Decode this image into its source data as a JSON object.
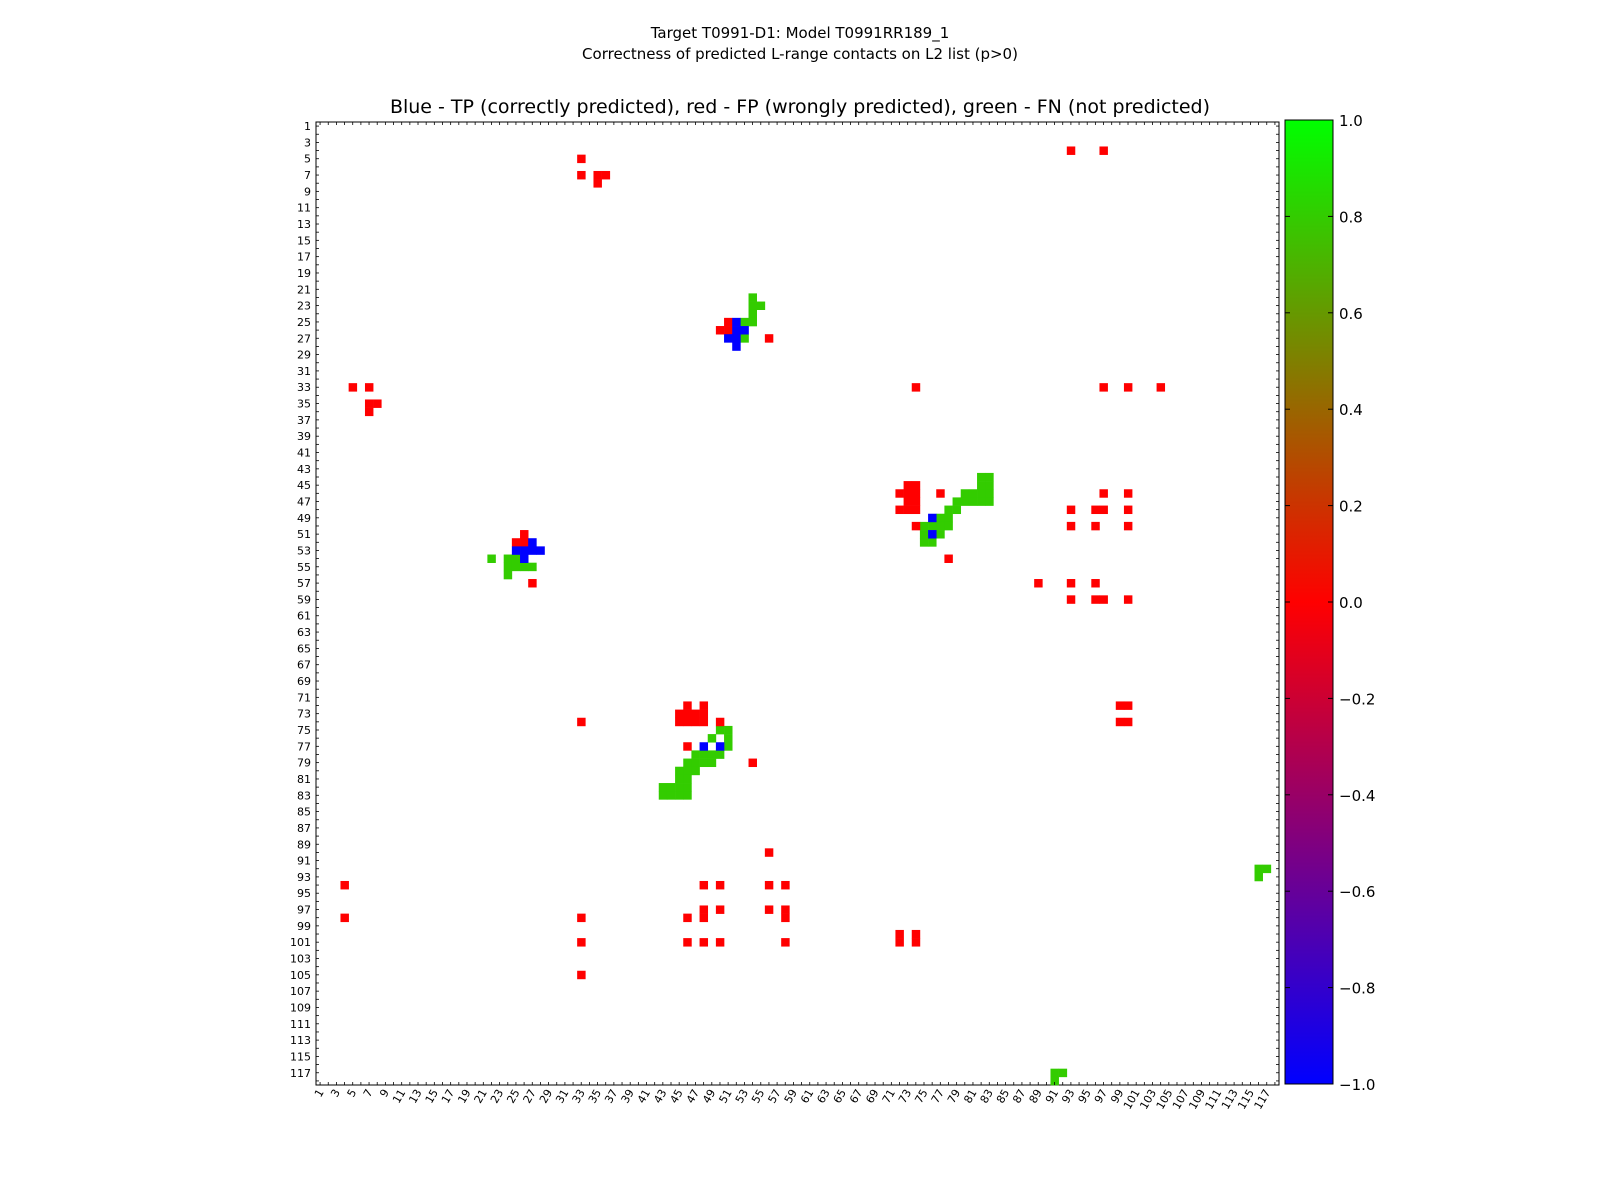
{
  "header": {
    "title_line1": "Target T0991-D1: Model T0991RR189_1",
    "title_line2": "Correctness of predicted L-range contacts on L2 list (p>0)"
  },
  "chart_data": {
    "type": "heatmap",
    "title": "Blue - TP (correctly predicted), red - FP (wrongly predicted), green - FN (not predicted)",
    "n": 118,
    "x_ticks": [
      1,
      3,
      5,
      7,
      9,
      11,
      13,
      15,
      17,
      19,
      21,
      23,
      25,
      27,
      29,
      31,
      33,
      35,
      37,
      39,
      41,
      43,
      45,
      47,
      49,
      51,
      53,
      55,
      57,
      59,
      61,
      63,
      65,
      67,
      69,
      71,
      73,
      75,
      77,
      79,
      81,
      83,
      85,
      87,
      89,
      91,
      93,
      95,
      97,
      99,
      101,
      103,
      105,
      107,
      109,
      111,
      113,
      115,
      117
    ],
    "y_ticks": [
      1,
      3,
      5,
      7,
      9,
      11,
      13,
      15,
      17,
      19,
      21,
      23,
      25,
      27,
      29,
      31,
      33,
      35,
      37,
      39,
      41,
      43,
      45,
      47,
      49,
      51,
      53,
      55,
      57,
      59,
      61,
      63,
      65,
      67,
      69,
      71,
      73,
      75,
      77,
      79,
      81,
      83,
      85,
      87,
      89,
      91,
      93,
      95,
      97,
      99,
      101,
      103,
      105,
      107,
      109,
      111,
      113,
      115,
      117
    ],
    "colorbar": {
      "min": -1.0,
      "max": 1.0,
      "ticks": [
        "1.0",
        "0.8",
        "0.6",
        "0.4",
        "0.2",
        "0.0",
        "−0.2",
        "−0.4",
        "−0.6",
        "−0.8",
        "−1.0"
      ],
      "tick_values": [
        1.0,
        0.8,
        0.6,
        0.4,
        0.2,
        0.0,
        -0.2,
        -0.4,
        -0.6,
        -0.8,
        -1.0
      ],
      "colors": [
        "#0000ff",
        "#ff0000",
        "#00ff00"
      ]
    },
    "colors": {
      "tp": "#0000ff",
      "fp": "#ff0000",
      "fn": "#33cc00"
    },
    "cells": {
      "fn": [
        [
          54,
          22
        ],
        [
          54,
          23
        ],
        [
          55,
          23
        ],
        [
          54,
          24
        ],
        [
          53,
          25
        ],
        [
          54,
          25
        ],
        [
          53,
          27
        ],
        [
          82,
          44
        ],
        [
          83,
          44
        ],
        [
          82,
          45
        ],
        [
          83,
          45
        ],
        [
          80,
          46
        ],
        [
          81,
          46
        ],
        [
          82,
          46
        ],
        [
          83,
          46
        ],
        [
          79,
          47
        ],
        [
          80,
          47
        ],
        [
          81,
          47
        ],
        [
          82,
          47
        ],
        [
          83,
          47
        ],
        [
          78,
          48
        ],
        [
          79,
          48
        ],
        [
          77,
          49
        ],
        [
          78,
          49
        ],
        [
          75,
          50
        ],
        [
          76,
          50
        ],
        [
          77,
          50
        ],
        [
          78,
          50
        ],
        [
          75,
          51
        ],
        [
          77,
          51
        ],
        [
          75,
          52
        ],
        [
          76,
          52
        ],
        [
          22,
          54
        ],
        [
          24,
          54
        ],
        [
          25,
          54
        ],
        [
          26,
          54
        ],
        [
          24,
          55
        ],
        [
          25,
          55
        ],
        [
          26,
          55
        ],
        [
          27,
          55
        ],
        [
          24,
          56
        ],
        [
          50,
          75
        ],
        [
          51,
          75
        ],
        [
          49,
          76
        ],
        [
          51,
          76
        ],
        [
          51,
          77
        ],
        [
          47,
          78
        ],
        [
          48,
          78
        ],
        [
          49,
          78
        ],
        [
          50,
          78
        ],
        [
          46,
          79
        ],
        [
          47,
          79
        ],
        [
          48,
          79
        ],
        [
          49,
          79
        ],
        [
          45,
          80
        ],
        [
          46,
          80
        ],
        [
          47,
          80
        ],
        [
          45,
          81
        ],
        [
          46,
          81
        ],
        [
          43,
          82
        ],
        [
          44,
          82
        ],
        [
          45,
          82
        ],
        [
          46,
          82
        ],
        [
          43,
          83
        ],
        [
          44,
          83
        ],
        [
          45,
          83
        ],
        [
          46,
          83
        ],
        [
          116,
          92
        ],
        [
          117,
          92
        ],
        [
          116,
          93
        ],
        [
          91,
          117
        ],
        [
          92,
          117
        ],
        [
          91,
          118
        ]
      ],
      "fp": [
        [
          93,
          4
        ],
        [
          97,
          4
        ],
        [
          33,
          5
        ],
        [
          33,
          7
        ],
        [
          35,
          7
        ],
        [
          36,
          7
        ],
        [
          35,
          8
        ],
        [
          51,
          25
        ],
        [
          50,
          26
        ],
        [
          51,
          26
        ],
        [
          56,
          27
        ],
        [
          5,
          33
        ],
        [
          7,
          33
        ],
        [
          74,
          33
        ],
        [
          97,
          33
        ],
        [
          100,
          33
        ],
        [
          104,
          33
        ],
        [
          7,
          35
        ],
        [
          8,
          35
        ],
        [
          7,
          36
        ],
        [
          73,
          45
        ],
        [
          74,
          45
        ],
        [
          72,
          46
        ],
        [
          73,
          46
        ],
        [
          74,
          46
        ],
        [
          77,
          46
        ],
        [
          97,
          46
        ],
        [
          100,
          46
        ],
        [
          73,
          47
        ],
        [
          74,
          47
        ],
        [
          72,
          48
        ],
        [
          73,
          48
        ],
        [
          74,
          48
        ],
        [
          93,
          48
        ],
        [
          96,
          48
        ],
        [
          97,
          48
        ],
        [
          100,
          48
        ],
        [
          74,
          50
        ],
        [
          93,
          50
        ],
        [
          96,
          50
        ],
        [
          100,
          50
        ],
        [
          26,
          51
        ],
        [
          25,
          52
        ],
        [
          26,
          52
        ],
        [
          27,
          57
        ],
        [
          78,
          54
        ],
        [
          89,
          57
        ],
        [
          93,
          57
        ],
        [
          96,
          57
        ],
        [
          93,
          59
        ],
        [
          96,
          59
        ],
        [
          97,
          59
        ],
        [
          100,
          59
        ],
        [
          46,
          72
        ],
        [
          48,
          72
        ],
        [
          45,
          73
        ],
        [
          46,
          73
        ],
        [
          47,
          73
        ],
        [
          48,
          73
        ],
        [
          99,
          72
        ],
        [
          100,
          72
        ],
        [
          33,
          74
        ],
        [
          45,
          74
        ],
        [
          46,
          74
        ],
        [
          47,
          74
        ],
        [
          48,
          74
        ],
        [
          50,
          74
        ],
        [
          99,
          74
        ],
        [
          100,
          74
        ],
        [
          46,
          77
        ],
        [
          54,
          79
        ],
        [
          56,
          90
        ],
        [
          4,
          94
        ],
        [
          48,
          94
        ],
        [
          50,
          94
        ],
        [
          56,
          94
        ],
        [
          58,
          94
        ],
        [
          48,
          97
        ],
        [
          50,
          97
        ],
        [
          56,
          97
        ],
        [
          58,
          97
        ],
        [
          4,
          98
        ],
        [
          33,
          98
        ],
        [
          46,
          98
        ],
        [
          48,
          98
        ],
        [
          58,
          98
        ],
        [
          72,
          100
        ],
        [
          74,
          100
        ],
        [
          33,
          101
        ],
        [
          46,
          101
        ],
        [
          48,
          101
        ],
        [
          50,
          101
        ],
        [
          58,
          101
        ],
        [
          72,
          101
        ],
        [
          74,
          101
        ],
        [
          33,
          105
        ]
      ],
      "tp": [
        [
          52,
          25
        ],
        [
          52,
          26
        ],
        [
          53,
          26
        ],
        [
          51,
          27
        ],
        [
          52,
          27
        ],
        [
          52,
          28
        ],
        [
          76,
          49
        ],
        [
          76,
          51
        ],
        [
          27,
          52
        ],
        [
          25,
          53
        ],
        [
          26,
          53
        ],
        [
          27,
          53
        ],
        [
          28,
          53
        ],
        [
          26,
          54
        ],
        [
          48,
          77
        ],
        [
          50,
          77
        ]
      ]
    }
  }
}
